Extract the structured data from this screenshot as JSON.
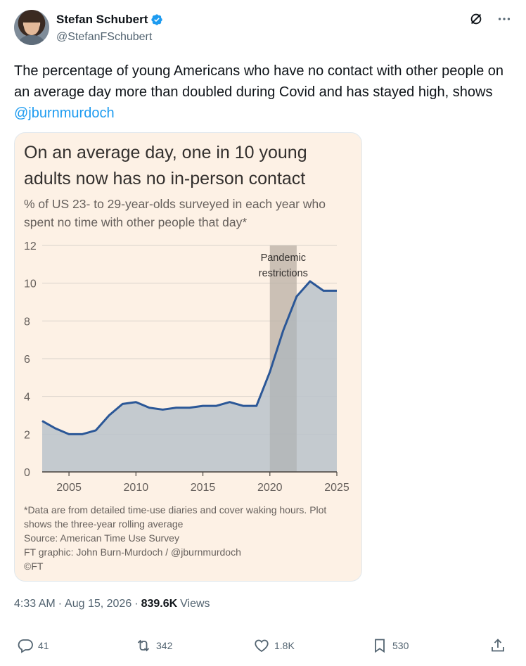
{
  "author": {
    "name": "Stefan Schubert",
    "handle": "@StefanFSchubert"
  },
  "tweet": {
    "text_before": "The percentage of young Americans who have no contact with other people on an average day more than doubled during Covid and has stayed high, shows ",
    "mention": "@jburnmurdoch"
  },
  "card": {
    "title": "On an average day, one in 10 young adults now has no in-person contact",
    "subtitle": "% of US 23- to 29-year-olds surveyed in each year who spent no time with other people that day*",
    "notes": [
      "*Data are from detailed time-use diaries and cover waking hours. Plot",
      "shows the three-year rolling average",
      "Source: American Time Use Survey",
      "FT graphic: John Burn-Murdoch / @jburnmurdoch",
      "©FT"
    ]
  },
  "chart_data": {
    "type": "area",
    "title": "On an average day, one in 10 young adults now has no in-person contact",
    "subtitle": "% of US 23- to 29-year-olds surveyed in each year who spent no time with other people that day*",
    "x": [
      2003,
      2004,
      2005,
      2006,
      2007,
      2008,
      2009,
      2010,
      2011,
      2012,
      2013,
      2014,
      2015,
      2016,
      2017,
      2018,
      2019,
      2020,
      2021,
      2022,
      2023,
      2024,
      2025
    ],
    "series": [
      {
        "values": [
          2.7,
          2.3,
          2.0,
          2.0,
          2.2,
          3.0,
          3.6,
          3.7,
          3.4,
          3.3,
          3.4,
          3.4,
          3.5,
          3.5,
          3.7,
          3.5,
          3.5,
          5.3,
          7.5,
          9.3,
          10.1,
          9.6,
          9.6
        ]
      }
    ],
    "xlim": [
      2003,
      2025
    ],
    "ylim": [
      0,
      12
    ],
    "x_ticks": [
      2005,
      2010,
      2015,
      2020,
      2025
    ],
    "y_ticks": [
      0,
      2,
      4,
      6,
      8,
      10,
      12
    ],
    "annotation": {
      "label_line1": "Pandemic",
      "label_line2": "restrictions",
      "x_start": 2020,
      "x_end": 2022
    },
    "grid": true,
    "colors": {
      "line": "#2b5797",
      "fill": "#bac3cb",
      "band": "#c9beb4",
      "grid": "#d9d2ca"
    }
  },
  "meta": {
    "time": "4:33 AM",
    "separator": "·",
    "date": "Aug 15, 2026",
    "separator2": "·",
    "views_count": "839.6K",
    "views_label": "Views"
  },
  "actions": {
    "replies": "41",
    "reposts": "342",
    "likes": "1.8K",
    "bookmarks": "530"
  },
  "icons": [
    "verified-badge-icon",
    "grok-icon",
    "more-icon",
    "reply-icon",
    "repost-icon",
    "like-icon",
    "bookmark-icon",
    "share-icon"
  ]
}
